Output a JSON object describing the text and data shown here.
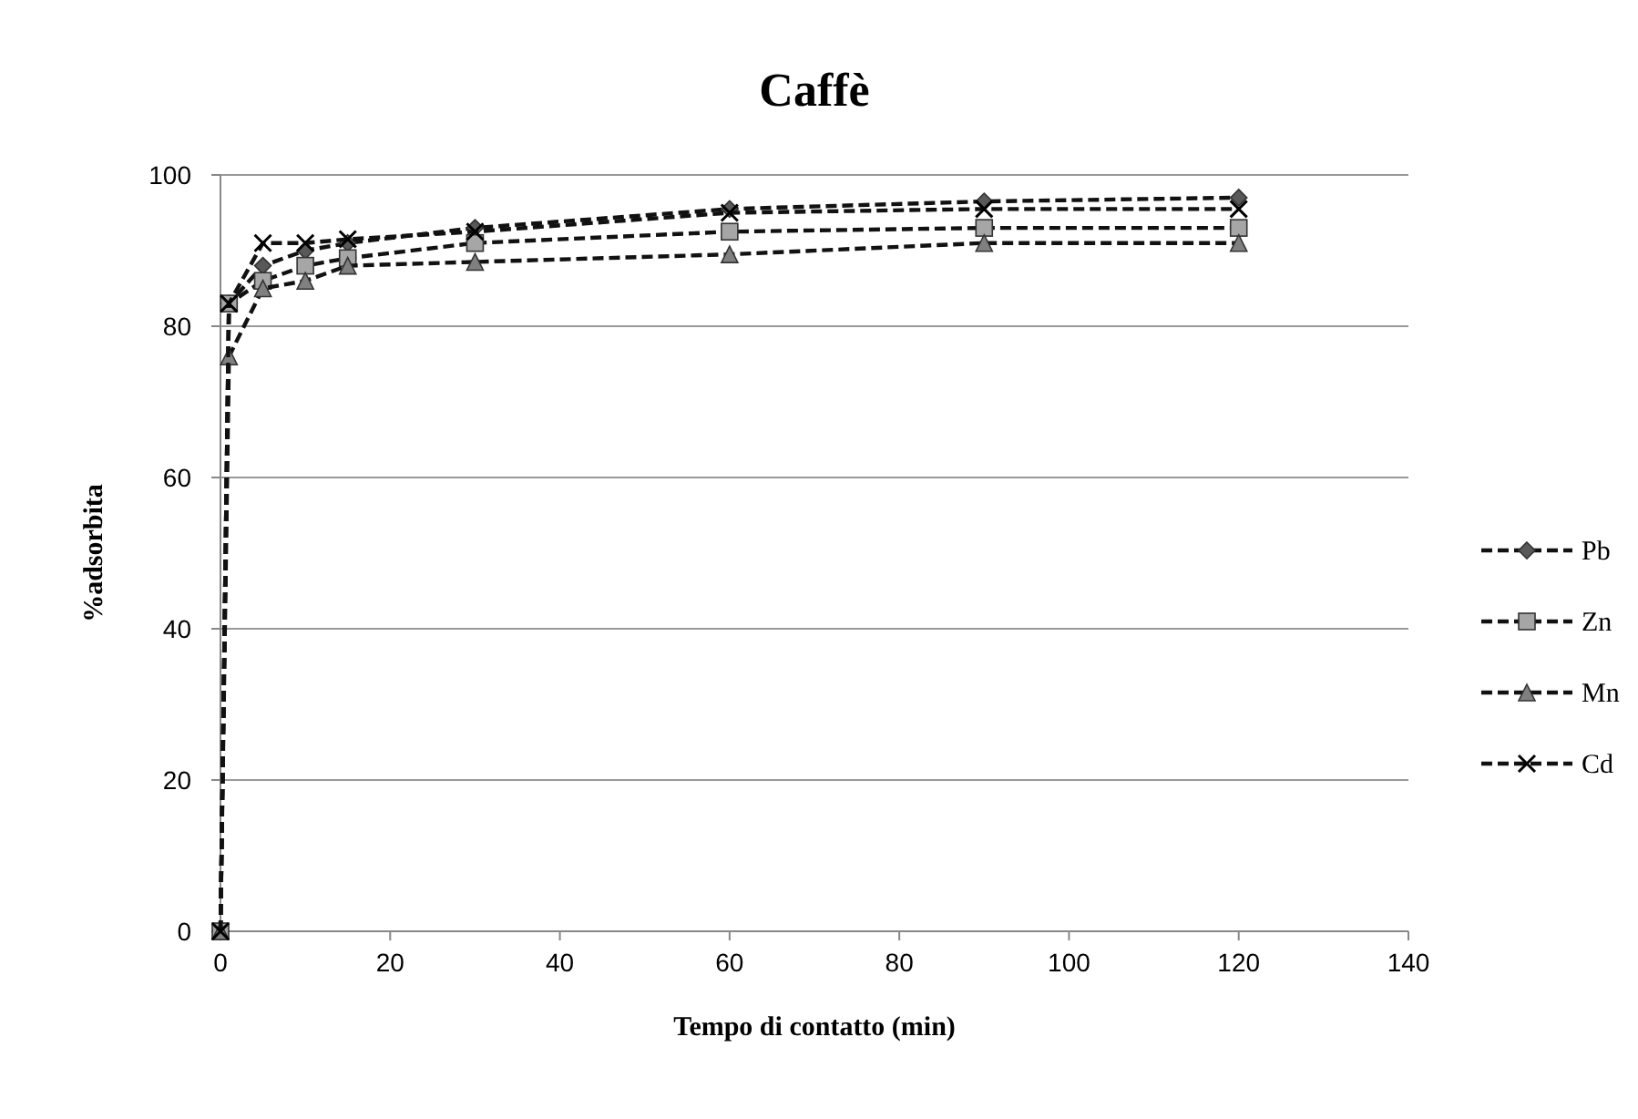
{
  "chart_data": {
    "type": "line",
    "title": "Caffè",
    "xlabel": "Tempo di contatto (min)",
    "ylabel": "%adsorbita",
    "x": [
      0,
      1,
      5,
      10,
      15,
      30,
      60,
      90,
      120
    ],
    "xlim": [
      0,
      140
    ],
    "xticks": [
      0,
      20,
      40,
      60,
      80,
      100,
      120,
      140
    ],
    "ylim": [
      0,
      100
    ],
    "yticks": [
      0,
      20,
      40,
      60,
      80,
      100
    ],
    "grid": "y",
    "legend": "right",
    "line_style": "dashed",
    "series": [
      {
        "name": "Pb",
        "color": "#595959",
        "marker": "diamond",
        "values": [
          0,
          83,
          88,
          90,
          91,
          93,
          95.5,
          96.5,
          97
        ]
      },
      {
        "name": "Zn",
        "color": "#a6a6a6",
        "marker": "square",
        "values": [
          0,
          83,
          86,
          88,
          89,
          91,
          92.5,
          93,
          93
        ]
      },
      {
        "name": "Mn",
        "color": "#808080",
        "marker": "triangle",
        "values": [
          0,
          76,
          85,
          86,
          88,
          88.5,
          89.5,
          91,
          91
        ]
      },
      {
        "name": "Cd",
        "color": "#000000",
        "marker": "cross",
        "values": [
          0,
          83,
          91,
          91,
          91.5,
          92.5,
          95,
          95.5,
          95.5
        ]
      }
    ]
  }
}
